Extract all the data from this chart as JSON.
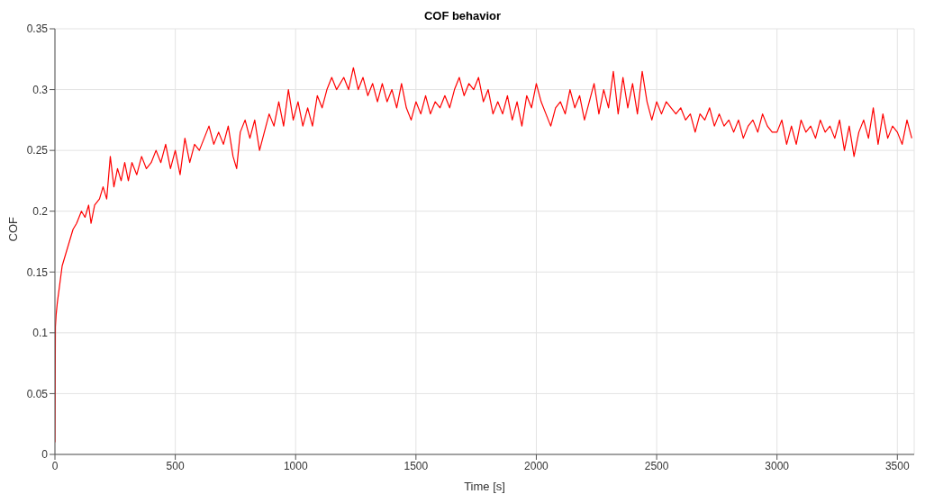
{
  "chart_data": {
    "type": "line",
    "title": "COF behavior",
    "xlabel": "Time [s]",
    "ylabel": "COF",
    "x": [
      0,
      2,
      5,
      10,
      20,
      30,
      45,
      60,
      75,
      90,
      110,
      125,
      140,
      150,
      165,
      185,
      200,
      215,
      230,
      245,
      260,
      275,
      290,
      305,
      320,
      340,
      360,
      380,
      400,
      420,
      440,
      460,
      480,
      500,
      520,
      540,
      560,
      580,
      600,
      620,
      640,
      660,
      680,
      700,
      720,
      740,
      755,
      770,
      790,
      810,
      830,
      850,
      870,
      890,
      910,
      930,
      950,
      970,
      990,
      1010,
      1030,
      1050,
      1070,
      1090,
      1110,
      1130,
      1150,
      1170,
      1200,
      1220,
      1240,
      1260,
      1280,
      1300,
      1320,
      1340,
      1360,
      1380,
      1400,
      1420,
      1440,
      1460,
      1480,
      1500,
      1520,
      1540,
      1560,
      1580,
      1600,
      1620,
      1640,
      1660,
      1680,
      1700,
      1720,
      1740,
      1760,
      1780,
      1800,
      1820,
      1840,
      1860,
      1880,
      1900,
      1920,
      1940,
      1960,
      1980,
      2000,
      2020,
      2040,
      2060,
      2080,
      2100,
      2120,
      2140,
      2160,
      2180,
      2200,
      2220,
      2240,
      2260,
      2280,
      2300,
      2320,
      2340,
      2360,
      2380,
      2400,
      2420,
      2440,
      2460,
      2480,
      2500,
      2520,
      2540,
      2560,
      2580,
      2600,
      2620,
      2640,
      2660,
      2680,
      2700,
      2720,
      2740,
      2760,
      2780,
      2800,
      2820,
      2840,
      2860,
      2880,
      2900,
      2920,
      2940,
      2960,
      2980,
      3000,
      3020,
      3040,
      3060,
      3080,
      3100,
      3120,
      3140,
      3160,
      3180,
      3200,
      3220,
      3240,
      3260,
      3280,
      3300,
      3320,
      3340,
      3360,
      3380,
      3400,
      3420,
      3440,
      3460,
      3480,
      3500,
      3520,
      3540,
      3560
    ],
    "series": [
      {
        "color": "#ff0000",
        "values": [
          0.01,
          0.105,
          0.115,
          0.125,
          0.14,
          0.155,
          0.165,
          0.175,
          0.185,
          0.19,
          0.2,
          0.195,
          0.205,
          0.19,
          0.205,
          0.21,
          0.22,
          0.21,
          0.245,
          0.22,
          0.235,
          0.225,
          0.24,
          0.225,
          0.24,
          0.23,
          0.245,
          0.235,
          0.24,
          0.25,
          0.24,
          0.255,
          0.235,
          0.25,
          0.23,
          0.26,
          0.24,
          0.255,
          0.25,
          0.26,
          0.27,
          0.255,
          0.265,
          0.255,
          0.27,
          0.245,
          0.235,
          0.265,
          0.275,
          0.26,
          0.275,
          0.25,
          0.265,
          0.28,
          0.27,
          0.29,
          0.27,
          0.3,
          0.275,
          0.29,
          0.27,
          0.285,
          0.27,
          0.295,
          0.285,
          0.3,
          0.31,
          0.3,
          0.31,
          0.3,
          0.318,
          0.3,
          0.31,
          0.295,
          0.305,
          0.29,
          0.305,
          0.29,
          0.3,
          0.285,
          0.305,
          0.285,
          0.275,
          0.29,
          0.28,
          0.295,
          0.28,
          0.29,
          0.285,
          0.295,
          0.285,
          0.3,
          0.31,
          0.295,
          0.305,
          0.3,
          0.31,
          0.29,
          0.3,
          0.28,
          0.29,
          0.28,
          0.295,
          0.275,
          0.29,
          0.27,
          0.295,
          0.285,
          0.305,
          0.29,
          0.28,
          0.27,
          0.285,
          0.29,
          0.28,
          0.3,
          0.285,
          0.295,
          0.275,
          0.29,
          0.305,
          0.28,
          0.3,
          0.285,
          0.315,
          0.28,
          0.31,
          0.285,
          0.305,
          0.28,
          0.315,
          0.29,
          0.275,
          0.29,
          0.28,
          0.29,
          0.285,
          0.28,
          0.285,
          0.275,
          0.28,
          0.265,
          0.28,
          0.275,
          0.285,
          0.27,
          0.28,
          0.27,
          0.275,
          0.265,
          0.275,
          0.26,
          0.27,
          0.275,
          0.265,
          0.28,
          0.27,
          0.265,
          0.265,
          0.275,
          0.255,
          0.27,
          0.255,
          0.275,
          0.265,
          0.27,
          0.26,
          0.275,
          0.265,
          0.27,
          0.26,
          0.275,
          0.25,
          0.27,
          0.245,
          0.265,
          0.275,
          0.26,
          0.285,
          0.255,
          0.28,
          0.26,
          0.27,
          0.265,
          0.255,
          0.275,
          0.26
        ]
      }
    ],
    "xlim": [
      0,
      3570
    ],
    "xticks": [
      0,
      500,
      1000,
      1500,
      2000,
      2500,
      3000,
      3500
    ],
    "ylim": [
      0,
      0.35
    ],
    "yticks": [
      0,
      0.05,
      0.1,
      0.15,
      0.2,
      0.25,
      0.3,
      0.35
    ],
    "grid": true,
    "marker": "none",
    "line_style": "solid"
  }
}
